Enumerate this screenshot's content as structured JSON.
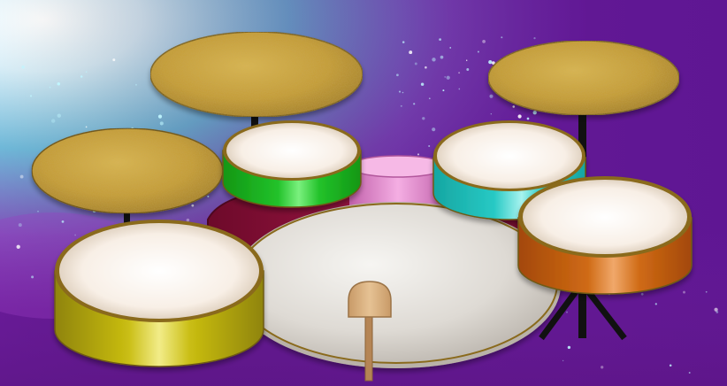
{
  "app": {
    "kind": "drum-kit"
  },
  "colors": {
    "bg_purple": "#6a1c9a",
    "bg_violet": "#8a2db0",
    "bg_cyan": "#6fb8d8",
    "bg_white": "#ffffff",
    "cymbal_gold": "#c9a23a",
    "cymbal_dark": "#8e6f1f",
    "head_cream": "#f6ece2",
    "rim_gold": "#8a6a1c",
    "stand_black": "#111111",
    "shell_olive": "#c9bd12",
    "shell_green": "#22c22a",
    "shell_cyan": "#27c9c4",
    "shell_orange": "#cf6a14",
    "shell_pink": "#e98ed3",
    "shell_maroon": "#8f0f3a",
    "bass_head": "#dcd8d2",
    "beater": "#deb887"
  },
  "kit": {
    "cymbals": [
      {
        "name": "crash-cymbal-left",
        "icon": "crash-cymbal-icon"
      },
      {
        "name": "ride-cymbal-center",
        "icon": "ride-cymbal-icon"
      },
      {
        "name": "crash-cymbal-right",
        "icon": "crash-cymbal-icon"
      }
    ],
    "drums": [
      {
        "name": "floor-tom-left",
        "shell_color": "shell_olive"
      },
      {
        "name": "high-tom-green",
        "shell_color": "shell_green"
      },
      {
        "name": "mid-tom-cyan",
        "shell_color": "shell_cyan"
      },
      {
        "name": "floor-tom-orange",
        "shell_color": "shell_orange"
      },
      {
        "name": "bass-drum",
        "shell_color": "shell_maroon"
      },
      {
        "name": "snare-drum-pink",
        "shell_color": "shell_pink"
      }
    ],
    "pedal": {
      "name": "kick-pedal-beater",
      "icon": "beater-icon"
    }
  }
}
